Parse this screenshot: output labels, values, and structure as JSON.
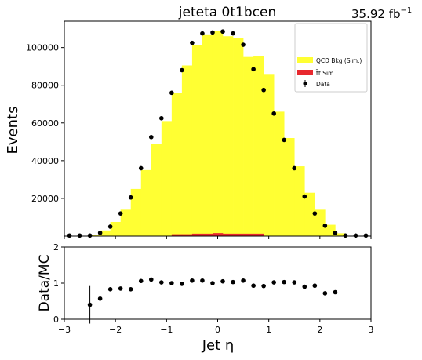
{
  "chart_data": [
    {
      "type": "bar",
      "panel": "main",
      "title": "jeteta  0t1bcen",
      "lumi_label": "35.92 fb",
      "lumi_unit_exponent": "−1",
      "ylabel": "Events",
      "xlim": [
        -3,
        3
      ],
      "ylim": [
        0,
        114000
      ],
      "yticks": [
        20000,
        40000,
        60000,
        80000,
        100000
      ],
      "bin_edges": [
        -2.5,
        -2.3,
        -2.1,
        -1.9,
        -1.7,
        -1.5,
        -1.3,
        -1.1,
        -0.9,
        -0.7,
        -0.5,
        -0.3,
        -0.1,
        0.1,
        0.3,
        0.5,
        0.7,
        0.9,
        1.1,
        1.3,
        1.5,
        1.7,
        1.9,
        2.1,
        2.3,
        2.5
      ],
      "series": [
        {
          "name": "QCD Bkg (Sim.)",
          "color": "#ffff33",
          "values": [
            800,
            3000,
            7500,
            14000,
            25000,
            35000,
            49000,
            61000,
            76000,
            90500,
            101500,
            107000,
            109000,
            106000,
            105000,
            95000,
            95500,
            86000,
            66000,
            52000,
            37000,
            23000,
            14000,
            6000,
            1500
          ]
        },
        {
          "name": "t̄t Sim.",
          "color": "#e8282e",
          "values": [
            0,
            0,
            0,
            0,
            0,
            0,
            200,
            200,
            1000,
            1000,
            1300,
            1300,
            1600,
            1300,
            1300,
            1300,
            1300,
            200,
            200,
            200,
            200,
            0,
            0,
            0,
            0
          ]
        }
      ],
      "data_points": {
        "name": "Data",
        "x": [
          -2.9,
          -2.7,
          -2.5,
          -2.3,
          -2.1,
          -1.9,
          -1.7,
          -1.5,
          -1.3,
          -1.1,
          -0.9,
          -0.7,
          -0.5,
          -0.3,
          -0.1,
          0.1,
          0.3,
          0.5,
          0.7,
          0.9,
          1.1,
          1.3,
          1.5,
          1.7,
          1.9,
          2.1,
          2.3,
          2.5,
          2.7,
          2.9
        ],
        "y": [
          300,
          300,
          300,
          1700,
          5000,
          12000,
          20500,
          36000,
          52500,
          62500,
          76000,
          88000,
          102500,
          107500,
          108000,
          108500,
          107500,
          101500,
          88500,
          77500,
          65000,
          51000,
          36000,
          21000,
          12000,
          5500,
          1700,
          300,
          300,
          300
        ]
      },
      "legend_position": "upper-right"
    },
    {
      "type": "scatter",
      "panel": "ratio",
      "ylabel": "Data/MC",
      "xlabel": "Jet η",
      "xlim": [
        -3,
        3
      ],
      "ylim": [
        0,
        2
      ],
      "xticks": [
        -3,
        -2,
        -1,
        0,
        1,
        2,
        3
      ],
      "yticks": [
        0,
        1,
        2
      ],
      "x": [
        -2.5,
        -2.3,
        -2.1,
        -1.9,
        -1.7,
        -1.5,
        -1.3,
        -1.1,
        -0.9,
        -0.7,
        -0.5,
        -0.3,
        -0.1,
        0.1,
        0.3,
        0.5,
        0.7,
        0.9,
        1.1,
        1.3,
        1.5,
        1.7,
        1.9,
        2.1,
        2.3
      ],
      "y": [
        0.4,
        0.57,
        0.83,
        0.85,
        0.83,
        1.06,
        1.1,
        1.02,
        1.0,
        0.98,
        1.07,
        1.07,
        1.0,
        1.05,
        1.03,
        1.07,
        0.93,
        0.92,
        1.02,
        1.03,
        1.02,
        0.9,
        0.93,
        0.72,
        0.75
      ],
      "yerr": [
        0.52,
        0.05,
        0.03,
        0.02,
        0.02,
        0.02,
        0.02,
        0.02,
        0.02,
        0.02,
        0.02,
        0.02,
        0.02,
        0.02,
        0.02,
        0.02,
        0.02,
        0.02,
        0.02,
        0.02,
        0.02,
        0.02,
        0.02,
        0.03,
        0.05
      ]
    }
  ]
}
